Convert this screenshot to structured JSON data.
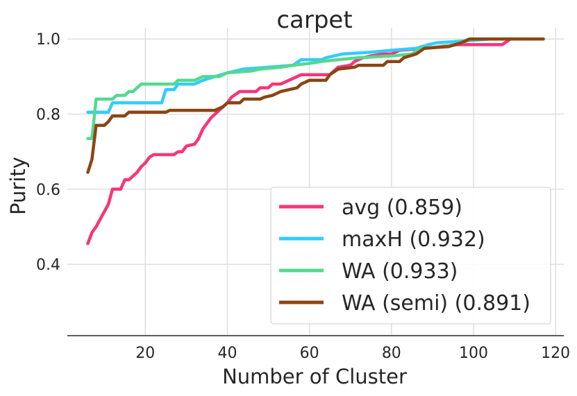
{
  "chart_data": {
    "type": "line",
    "title": "carpet",
    "xlabel": "Number of Cluster",
    "ylabel": "Purity",
    "xlim": [
      1,
      122
    ],
    "ylim": [
      0.21,
      1.03
    ],
    "x_ticks": [
      20,
      40,
      60,
      80,
      100,
      120
    ],
    "y_ticks": [
      0.4,
      0.6,
      0.8,
      1.0
    ],
    "x_tick_labels": [
      "20",
      "40",
      "60",
      "80",
      "100",
      "120"
    ],
    "y_tick_labels": [
      "0.4",
      "0.6",
      "0.8",
      "1.0"
    ],
    "grid": true,
    "legend_position": "lower-right",
    "series": [
      {
        "name": "avg (0.859)",
        "color": "#f73579",
        "points": [
          [
            6,
            0.455
          ],
          [
            7,
            0.485
          ],
          [
            8,
            0.5
          ],
          [
            9,
            0.52
          ],
          [
            10,
            0.54
          ],
          [
            11,
            0.56
          ],
          [
            12,
            0.6
          ],
          [
            14,
            0.6
          ],
          [
            15,
            0.625
          ],
          [
            16,
            0.625
          ],
          [
            17,
            0.635
          ],
          [
            18,
            0.645
          ],
          [
            19,
            0.66
          ],
          [
            20,
            0.67
          ],
          [
            21,
            0.685
          ],
          [
            22,
            0.692
          ],
          [
            27,
            0.692
          ],
          [
            28,
            0.7
          ],
          [
            29,
            0.7
          ],
          [
            30,
            0.715
          ],
          [
            32,
            0.72
          ],
          [
            33,
            0.735
          ],
          [
            34,
            0.76
          ],
          [
            35,
            0.775
          ],
          [
            36,
            0.79
          ],
          [
            37,
            0.8
          ],
          [
            38,
            0.81
          ],
          [
            40,
            0.83
          ],
          [
            41,
            0.845
          ],
          [
            43,
            0.86
          ],
          [
            47,
            0.86
          ],
          [
            48,
            0.87
          ],
          [
            50,
            0.87
          ],
          [
            51,
            0.88
          ],
          [
            53,
            0.88
          ],
          [
            55,
            0.89
          ],
          [
            57,
            0.9
          ],
          [
            58,
            0.905
          ],
          [
            65,
            0.905
          ],
          [
            66,
            0.915
          ],
          [
            67,
            0.925
          ],
          [
            70,
            0.93
          ],
          [
            71,
            0.94
          ],
          [
            72,
            0.945
          ],
          [
            73,
            0.95
          ],
          [
            75,
            0.955
          ],
          [
            78,
            0.96
          ],
          [
            80,
            0.96
          ],
          [
            82,
            0.97
          ],
          [
            88,
            0.975
          ],
          [
            96,
            0.985
          ],
          [
            104,
            0.985
          ],
          [
            107,
            0.985
          ],
          [
            109,
            1.0
          ],
          [
            117,
            1.0
          ]
        ]
      },
      {
        "name": "maxH (0.932)",
        "color": "#33ccfd",
        "points": [
          [
            6,
            0.805
          ],
          [
            11,
            0.805
          ],
          [
            12,
            0.83
          ],
          [
            24,
            0.83
          ],
          [
            25,
            0.865
          ],
          [
            27,
            0.865
          ],
          [
            28,
            0.88
          ],
          [
            32,
            0.88
          ],
          [
            34,
            0.89
          ],
          [
            40,
            0.91
          ],
          [
            42,
            0.915
          ],
          [
            44,
            0.92
          ],
          [
            50,
            0.925
          ],
          [
            56,
            0.93
          ],
          [
            58,
            0.945
          ],
          [
            63,
            0.945
          ],
          [
            64,
            0.95
          ],
          [
            68,
            0.96
          ],
          [
            75,
            0.965
          ],
          [
            80,
            0.97
          ],
          [
            86,
            0.975
          ],
          [
            89,
            0.985
          ],
          [
            91,
            0.99
          ],
          [
            98,
            0.995
          ],
          [
            104,
            1.0
          ],
          [
            117,
            1.0
          ]
        ]
      },
      {
        "name": "WA (0.933)",
        "color": "#56d890",
        "points": [
          [
            6,
            0.735
          ],
          [
            7,
            0.735
          ],
          [
            8,
            0.84
          ],
          [
            12,
            0.84
          ],
          [
            13,
            0.85
          ],
          [
            15,
            0.85
          ],
          [
            16,
            0.86
          ],
          [
            17,
            0.86
          ],
          [
            18,
            0.87
          ],
          [
            19,
            0.88
          ],
          [
            27,
            0.88
          ],
          [
            28,
            0.89
          ],
          [
            32,
            0.89
          ],
          [
            34,
            0.9
          ],
          [
            38,
            0.9
          ],
          [
            40,
            0.91
          ],
          [
            46,
            0.915
          ],
          [
            48,
            0.92
          ],
          [
            53,
            0.925
          ],
          [
            56,
            0.93
          ],
          [
            60,
            0.935
          ],
          [
            63,
            0.94
          ],
          [
            67,
            0.945
          ],
          [
            72,
            0.95
          ],
          [
            80,
            0.955
          ],
          [
            85,
            0.96
          ],
          [
            87,
            0.975
          ],
          [
            93,
            0.98
          ],
          [
            97,
            0.99
          ],
          [
            100,
            1.0
          ],
          [
            117,
            1.0
          ]
        ]
      },
      {
        "name": "WA (semi) (0.891)",
        "color": "#8b4513",
        "points": [
          [
            6,
            0.645
          ],
          [
            7,
            0.68
          ],
          [
            8,
            0.77
          ],
          [
            10,
            0.77
          ],
          [
            11,
            0.78
          ],
          [
            12,
            0.795
          ],
          [
            15,
            0.795
          ],
          [
            16,
            0.805
          ],
          [
            25,
            0.805
          ],
          [
            26,
            0.81
          ],
          [
            37,
            0.81
          ],
          [
            39,
            0.82
          ],
          [
            40,
            0.83
          ],
          [
            43,
            0.83
          ],
          [
            44,
            0.84
          ],
          [
            48,
            0.84
          ],
          [
            49,
            0.845
          ],
          [
            51,
            0.85
          ],
          [
            53,
            0.86
          ],
          [
            55,
            0.865
          ],
          [
            57,
            0.87
          ],
          [
            58,
            0.88
          ],
          [
            60,
            0.89
          ],
          [
            64,
            0.89
          ],
          [
            65,
            0.905
          ],
          [
            67,
            0.92
          ],
          [
            71,
            0.925
          ],
          [
            72,
            0.93
          ],
          [
            78,
            0.93
          ],
          [
            79,
            0.94
          ],
          [
            82,
            0.94
          ],
          [
            83,
            0.95
          ],
          [
            86,
            0.96
          ],
          [
            88,
            0.975
          ],
          [
            94,
            0.98
          ],
          [
            97,
            0.99
          ],
          [
            99,
            1.0
          ],
          [
            117,
            1.0
          ]
        ]
      }
    ]
  }
}
